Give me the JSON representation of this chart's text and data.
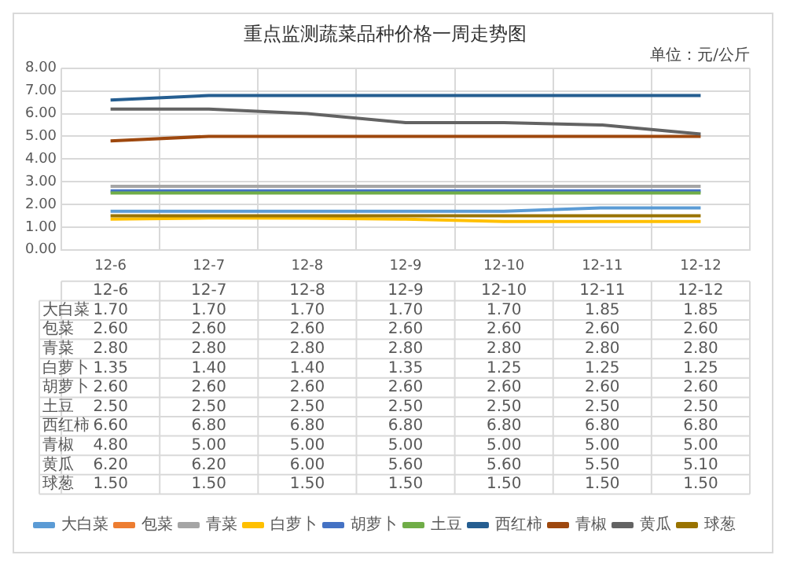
{
  "chart_data": {
    "type": "line",
    "title": "重点监测蔬菜品种价格一周走势图",
    "subtitle": "单位：元/公斤",
    "categories": [
      "12-6",
      "12-7",
      "12-8",
      "12-9",
      "12-10",
      "12-11",
      "12-12"
    ],
    "ylim": [
      0,
      8
    ],
    "yticks": [
      {
        "value": 0,
        "label": "0.00"
      },
      {
        "value": 1,
        "label": "1.00"
      },
      {
        "value": 2,
        "label": "2.00"
      },
      {
        "value": 3,
        "label": "3.00"
      },
      {
        "value": 4,
        "label": "4.00"
      },
      {
        "value": 5,
        "label": "5.00"
      },
      {
        "value": 6,
        "label": "6.00"
      },
      {
        "value": 7,
        "label": "7.00"
      },
      {
        "value": 8,
        "label": "8.00"
      }
    ],
    "grid": true,
    "legend": "bottom",
    "marker": "none",
    "line_style": "solid",
    "series": [
      {
        "name": "大白菜",
        "color": "#5b9bd5",
        "values": [
          1.7,
          1.7,
          1.7,
          1.7,
          1.7,
          1.85,
          1.85
        ],
        "value_labels": [
          "1.70",
          "1.70",
          "1.70",
          "1.70",
          "1.70",
          "1.85",
          "1.85"
        ]
      },
      {
        "name": "包菜",
        "color": "#ed7d31",
        "values": [
          null,
          null,
          null,
          null,
          null,
          null,
          null
        ],
        "value_labels": [
          "2.60",
          "2.60",
          "2.60",
          "2.60",
          "2.60",
          "2.60",
          "2.60"
        ]
      },
      {
        "name": "青菜",
        "color": "#a5a5a5",
        "values": [
          2.8,
          2.8,
          2.8,
          2.8,
          2.8,
          2.8,
          2.8
        ],
        "value_labels": [
          "2.80",
          "2.80",
          "2.80",
          "2.80",
          "2.80",
          "2.80",
          "2.80"
        ]
      },
      {
        "name": "白萝卜",
        "color": "#ffc000",
        "values": [
          1.35,
          1.4,
          1.4,
          1.35,
          1.25,
          1.25,
          1.25
        ],
        "value_labels": [
          "1.35",
          "1.40",
          "1.40",
          "1.35",
          "1.25",
          "1.25",
          "1.25"
        ]
      },
      {
        "name": "胡萝卜",
        "color": "#4472c4",
        "values": [
          2.6,
          2.6,
          2.6,
          2.6,
          2.6,
          2.6,
          2.6
        ],
        "value_labels": [
          "2.60",
          "2.60",
          "2.60",
          "2.60",
          "2.60",
          "2.60",
          "2.60"
        ]
      },
      {
        "name": "土豆",
        "color": "#70ad47",
        "values": [
          2.5,
          2.5,
          2.5,
          2.5,
          2.5,
          2.5,
          2.5
        ],
        "value_labels": [
          "2.50",
          "2.50",
          "2.50",
          "2.50",
          "2.50",
          "2.50",
          "2.50"
        ]
      },
      {
        "name": "西红柿",
        "color": "#255e91",
        "values": [
          6.6,
          6.8,
          6.8,
          6.8,
          6.8,
          6.8,
          6.8
        ],
        "value_labels": [
          "6.60",
          "6.80",
          "6.80",
          "6.80",
          "6.80",
          "6.80",
          "6.80"
        ]
      },
      {
        "name": "青椒",
        "color": "#9e480e",
        "values": [
          4.8,
          5,
          5,
          5,
          5,
          5,
          5
        ],
        "value_labels": [
          "4.80",
          "5.00",
          "5.00",
          "5.00",
          "5.00",
          "5.00",
          "5.00"
        ]
      },
      {
        "name": "黄瓜",
        "color": "#636363",
        "values": [
          6.2,
          6.2,
          6,
          5.6,
          5.6,
          5.5,
          5.1
        ],
        "value_labels": [
          "6.20",
          "6.20",
          "6.00",
          "5.60",
          "5.60",
          "5.50",
          "5.10"
        ]
      },
      {
        "name": "球葱",
        "color": "#997300",
        "values": [
          1.5,
          1.5,
          1.5,
          1.5,
          1.5,
          1.5,
          1.5
        ],
        "value_labels": [
          "1.50",
          "1.50",
          "1.50",
          "1.50",
          "1.50",
          "1.50",
          "1.50"
        ]
      }
    ]
  }
}
